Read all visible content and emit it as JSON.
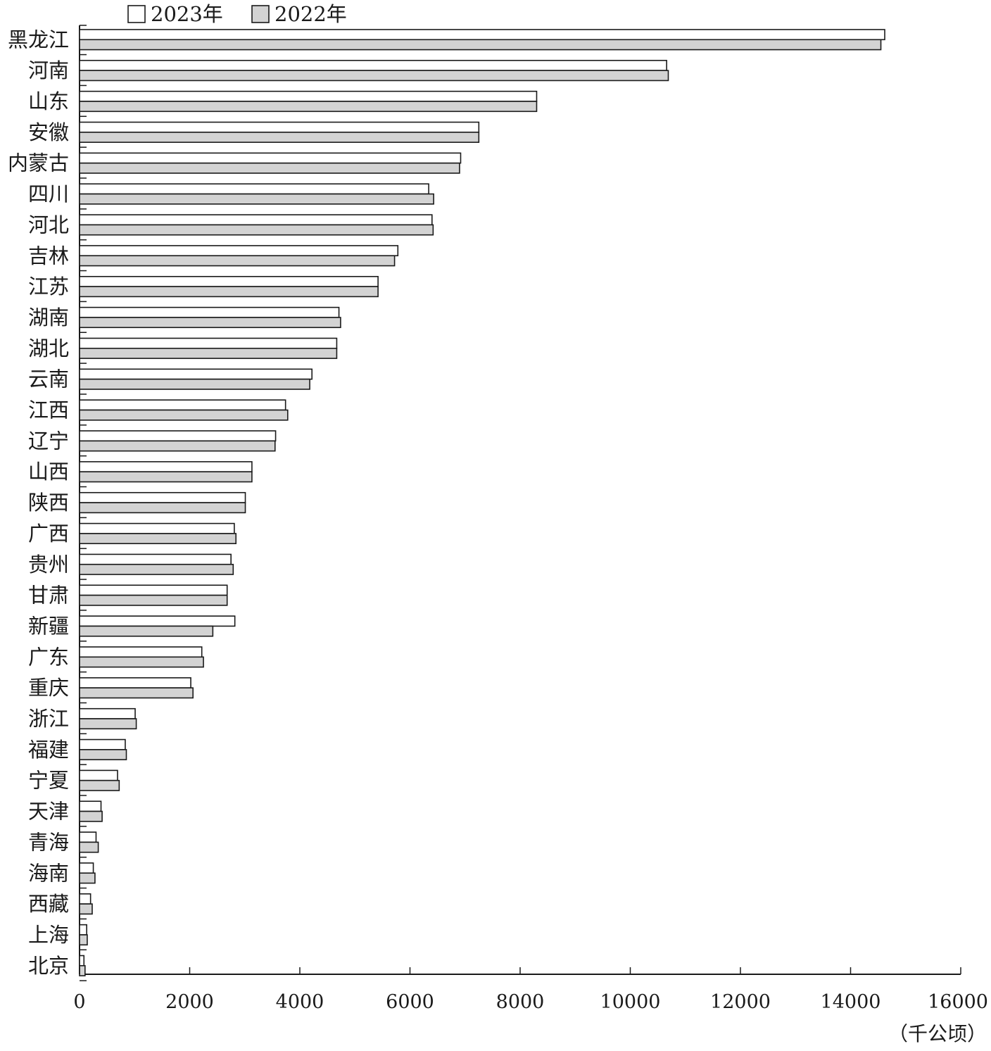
{
  "chart_data": {
    "type": "bar",
    "orientation": "horizontal",
    "categories": [
      "黑龙江",
      "河南",
      "山东",
      "安徽",
      "内蒙古",
      "四川",
      "河北",
      "吉林",
      "江苏",
      "湖南",
      "湖北",
      "云南",
      "江西",
      "辽宁",
      "山西",
      "陕西",
      "广西",
      "贵州",
      "甘肃",
      "新疆",
      "广东",
      "重庆",
      "浙江",
      "福建",
      "宁夏",
      "天津",
      "青海",
      "海南",
      "西藏",
      "上海",
      "北京"
    ],
    "series": [
      {
        "name": "2023年",
        "color": "#ffffff",
        "values": [
          14620,
          10660,
          8300,
          7250,
          6920,
          6340,
          6400,
          5780,
          5420,
          4710,
          4670,
          4220,
          3740,
          3560,
          3130,
          3010,
          2810,
          2750,
          2680,
          2820,
          2220,
          2020,
          1010,
          830,
          690,
          390,
          300,
          250,
          200,
          130,
          80
        ]
      },
      {
        "name": "2022年",
        "color": "#d3d3d3",
        "values": [
          14550,
          10690,
          8300,
          7250,
          6900,
          6430,
          6420,
          5720,
          5420,
          4740,
          4670,
          4180,
          3780,
          3550,
          3130,
          3010,
          2840,
          2790,
          2680,
          2420,
          2250,
          2060,
          1030,
          850,
          720,
          410,
          340,
          280,
          230,
          140,
          100
        ]
      }
    ],
    "xlim": [
      0,
      16000
    ],
    "xticks": [
      "0",
      "2000",
      "4000",
      "6000",
      "8000",
      "10000",
      "12000",
      "14000",
      "16000"
    ],
    "unit": "（千公顷）",
    "legend_position": "top-left",
    "grid": false
  }
}
